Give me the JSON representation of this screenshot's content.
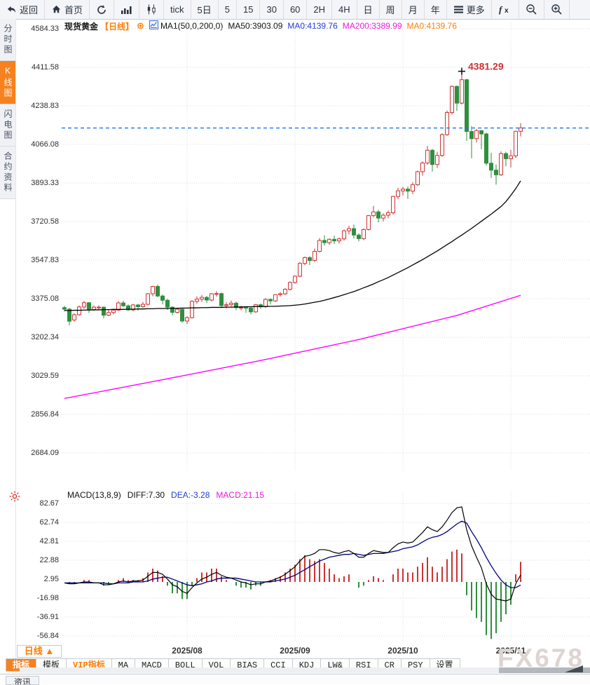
{
  "toolbar": {
    "items": [
      {
        "name": "back-button",
        "icon": "back",
        "label": "返回"
      },
      {
        "name": "home-button",
        "icon": "home",
        "label": "首页"
      },
      {
        "name": "refresh-button",
        "icon": "refresh",
        "label": ""
      },
      {
        "name": "line-chart-button",
        "icon": "barchart",
        "label": ""
      },
      {
        "name": "candle-chart-button",
        "icon": "candle",
        "label": ""
      },
      {
        "name": "interval-tick",
        "icon": "",
        "label": "tick"
      },
      {
        "name": "interval-5day",
        "icon": "",
        "label": "5日"
      },
      {
        "name": "interval-5min",
        "icon": "",
        "label": "5"
      },
      {
        "name": "interval-15min",
        "icon": "",
        "label": "15"
      },
      {
        "name": "interval-30min",
        "icon": "",
        "label": "30"
      },
      {
        "name": "interval-60min",
        "icon": "",
        "label": "60"
      },
      {
        "name": "interval-2h",
        "icon": "",
        "label": "2H"
      },
      {
        "name": "interval-4h",
        "icon": "",
        "label": "4H"
      },
      {
        "name": "interval-day",
        "icon": "",
        "label": "日"
      },
      {
        "name": "interval-week",
        "icon": "",
        "label": "周"
      },
      {
        "name": "interval-month",
        "icon": "",
        "label": "月"
      },
      {
        "name": "interval-year",
        "icon": "",
        "label": "年"
      },
      {
        "name": "more-button",
        "icon": "menu",
        "label": "更多"
      },
      {
        "name": "formula-button",
        "icon": "fx",
        "label": ""
      },
      {
        "name": "zoom-out-button",
        "icon": "zoomout",
        "label": ""
      },
      {
        "name": "zoom-in-button",
        "icon": "zoomin",
        "label": ""
      }
    ]
  },
  "sidebar": {
    "items": [
      {
        "name": "sidebar-item-time-chart",
        "label": "分时图",
        "active": false
      },
      {
        "name": "sidebar-item-kline-chart",
        "label": "K线图",
        "active": true
      },
      {
        "name": "sidebar-item-flash-chart",
        "label": "闪电图",
        "active": false
      },
      {
        "name": "sidebar-item-contract-info",
        "label": "合约资料",
        "active": false
      }
    ]
  },
  "chart_header": {
    "symbol": "现货黄金",
    "period_tag": "【日线】",
    "plus_glyph": "⊕",
    "ma_param": "MA1(50,0,200,0)",
    "ma50_text": "MA50:3903.09",
    "ma0_blue_text": "MA0:4139.76",
    "ma200_text": "MA200:3389.99",
    "ma0_orange_text": "MA0:4139.76"
  },
  "macd_header": {
    "param": "MACD(13,8,9)",
    "diff_text": "DIFF:7.30",
    "dea_text": "DEA:-3.28",
    "macd_text": "MACD:21.15"
  },
  "bottom": {
    "period_selector": "日线 ▲",
    "tabs": [
      {
        "name": "tab-indicator",
        "label": "指标",
        "style": "active"
      },
      {
        "name": "tab-template",
        "label": "模板",
        "style": ""
      },
      {
        "name": "tab-vip-indicator",
        "label": "VIP指标",
        "style": "vip"
      },
      {
        "name": "tab-ma",
        "label": "MA",
        "style": ""
      },
      {
        "name": "tab-macd",
        "label": "MACD",
        "style": ""
      },
      {
        "name": "tab-boll",
        "label": "BOLL",
        "style": ""
      },
      {
        "name": "tab-vol",
        "label": "VOL",
        "style": ""
      },
      {
        "name": "tab-bias",
        "label": "BIAS",
        "style": ""
      },
      {
        "name": "tab-cci",
        "label": "CCI",
        "style": ""
      },
      {
        "name": "tab-kdj",
        "label": "KDJ",
        "style": ""
      },
      {
        "name": "tab-lw",
        "label": "LW&",
        "style": ""
      },
      {
        "name": "tab-rsi",
        "label": "RSI",
        "style": ""
      },
      {
        "name": "tab-cr",
        "label": "CR",
        "style": ""
      },
      {
        "name": "tab-psy",
        "label": "PSY",
        "style": ""
      },
      {
        "name": "tab-settings",
        "label": "设置",
        "style": ""
      }
    ],
    "corner_tab": "资讯"
  },
  "watermark": "FX678",
  "colors": {
    "up": "#cc3333",
    "down": "#2f8f3f",
    "ma50": "#000000",
    "ma200": "#ff00ff",
    "diff": "#000000",
    "dea": "#000080",
    "dashed_price_line": "#1678e8",
    "accent_orange": "#f5821f",
    "annotation_red": "#d03030",
    "grid": "#dcdcdc"
  },
  "chart_data": [
    {
      "type": "candlestick",
      "title": "现货黄金 日线 (spot gold daily)",
      "y_ticks": [
        4584.33,
        4411.58,
        4238.83,
        4066.08,
        3893.33,
        3720.58,
        3547.83,
        3375.08,
        3202.34,
        3029.59,
        2856.84,
        2684.09
      ],
      "x_labels": [
        {
          "label": "2025/08",
          "i": 25
        },
        {
          "label": "2025/09",
          "i": 47
        },
        {
          "label": "2025/10",
          "i": 69
        },
        {
          "label": "2025/11",
          "i": 91
        }
      ],
      "current_price_line": 4139.76,
      "peak_annotation": {
        "i": 81,
        "price": 4381.29,
        "label": "4381.29"
      },
      "ma50_current": 3903.09,
      "ma200_current": 3389.99,
      "candles": [
        [
          3335,
          3343,
          3318,
          3328
        ],
        [
          3328,
          3334,
          3255,
          3274
        ],
        [
          3280,
          3310,
          3272,
          3303
        ],
        [
          3303,
          3345,
          3298,
          3338
        ],
        [
          3338,
          3365,
          3330,
          3357
        ],
        [
          3357,
          3360,
          3311,
          3326
        ],
        [
          3326,
          3344,
          3320,
          3337
        ],
        [
          3337,
          3345,
          3325,
          3337
        ],
        [
          3337,
          3340,
          3287,
          3301
        ],
        [
          3301,
          3325,
          3296,
          3313
        ],
        [
          3313,
          3330,
          3305,
          3324
        ],
        [
          3324,
          3364,
          3320,
          3356
        ],
        [
          3356,
          3366,
          3338,
          3343
        ],
        [
          3343,
          3349,
          3320,
          3325
        ],
        [
          3325,
          3352,
          3319,
          3347
        ],
        [
          3347,
          3352,
          3321,
          3339
        ],
        [
          3339,
          3360,
          3334,
          3350
        ],
        [
          3350,
          3401,
          3345,
          3397
        ],
        [
          3397,
          3433,
          3386,
          3430
        ],
        [
          3430,
          3438,
          3381,
          3387
        ],
        [
          3387,
          3394,
          3350,
          3368
        ],
        [
          3368,
          3374,
          3325,
          3337
        ],
        [
          3337,
          3341,
          3301,
          3314
        ],
        [
          3314,
          3335,
          3308,
          3328
        ],
        [
          3328,
          3330,
          3268,
          3275
        ],
        [
          3275,
          3296,
          3262,
          3290
        ],
        [
          3290,
          3369,
          3286,
          3363
        ],
        [
          3363,
          3385,
          3352,
          3373
        ],
        [
          3373,
          3392,
          3360,
          3381
        ],
        [
          3381,
          3387,
          3355,
          3369
        ],
        [
          3369,
          3400,
          3362,
          3397
        ],
        [
          3397,
          3409,
          3384,
          3398
        ],
        [
          3398,
          3402,
          3335,
          3344
        ],
        [
          3344,
          3360,
          3331,
          3348
        ],
        [
          3348,
          3367,
          3340,
          3355
        ],
        [
          3355,
          3362,
          3324,
          3335
        ],
        [
          3335,
          3344,
          3323,
          3336
        ],
        [
          3336,
          3340,
          3312,
          3333
        ],
        [
          3333,
          3338,
          3305,
          3316
        ],
        [
          3316,
          3352,
          3312,
          3348
        ],
        [
          3348,
          3353,
          3330,
          3339
        ],
        [
          3339,
          3378,
          3334,
          3372
        ],
        [
          3372,
          3376,
          3350,
          3365
        ],
        [
          3365,
          3396,
          3360,
          3393
        ],
        [
          3393,
          3405,
          3384,
          3397
        ],
        [
          3397,
          3423,
          3391,
          3417
        ],
        [
          3417,
          3452,
          3412,
          3448
        ],
        [
          3448,
          3480,
          3442,
          3476
        ],
        [
          3476,
          3540,
          3470,
          3533
        ],
        [
          3533,
          3564,
          3525,
          3559
        ],
        [
          3559,
          3566,
          3526,
          3546
        ],
        [
          3546,
          3600,
          3540,
          3587
        ],
        [
          3587,
          3646,
          3582,
          3636
        ],
        [
          3636,
          3659,
          3613,
          3626
        ],
        [
          3626,
          3646,
          3617,
          3641
        ],
        [
          3641,
          3657,
          3620,
          3634
        ],
        [
          3634,
          3649,
          3622,
          3643
        ],
        [
          3643,
          3685,
          3635,
          3679
        ],
        [
          3679,
          3702,
          3663,
          3689
        ],
        [
          3689,
          3707,
          3645,
          3660
        ],
        [
          3660,
          3668,
          3632,
          3644
        ],
        [
          3644,
          3690,
          3637,
          3685
        ],
        [
          3685,
          3750,
          3680,
          3747
        ],
        [
          3747,
          3791,
          3740,
          3764
        ],
        [
          3764,
          3773,
          3717,
          3736
        ],
        [
          3736,
          3757,
          3721,
          3749
        ],
        [
          3749,
          3770,
          3735,
          3760
        ],
        [
          3760,
          3836,
          3752,
          3833
        ],
        [
          3833,
          3872,
          3820,
          3858
        ],
        [
          3858,
          3876,
          3838,
          3866
        ],
        [
          3866,
          3878,
          3822,
          3857
        ],
        [
          3857,
          3897,
          3843,
          3886
        ],
        [
          3886,
          3949,
          3880,
          3944
        ],
        [
          3944,
          3990,
          3926,
          3983
        ],
        [
          3983,
          4059,
          3975,
          4040
        ],
        [
          4040,
          4046,
          3945,
          3976
        ],
        [
          3976,
          4033,
          3960,
          4017
        ],
        [
          4017,
          4116,
          4010,
          4110
        ],
        [
          4110,
          4218,
          4104,
          4209
        ],
        [
          4209,
          4331,
          4200,
          4326
        ],
        [
          4326,
          4330,
          4216,
          4251
        ],
        [
          4251,
          4381.29,
          4245,
          4356
        ],
        [
          4356,
          4360,
          4082,
          4124
        ],
        [
          4124,
          4148,
          4004,
          4092
        ],
        [
          4092,
          4136,
          4075,
          4128
        ],
        [
          4128,
          4130,
          4044,
          4113
        ],
        [
          4113,
          4119,
          3972,
          3982
        ],
        [
          3982,
          4029,
          3916,
          3951
        ],
        [
          3951,
          3976,
          3886,
          3930
        ],
        [
          3930,
          4035,
          3925,
          4025
        ],
        [
          4025,
          4033,
          3968,
          4002
        ],
        [
          4002,
          4042,
          3963,
          4015
        ],
        [
          4015,
          4128,
          4005,
          4125
        ],
        [
          4125,
          4161,
          4102,
          4140
        ]
      ],
      "ma50": [
        3322,
        3322,
        3323,
        3323,
        3324,
        3324,
        3325,
        3325,
        3326,
        3326,
        3327,
        3327,
        3327,
        3328,
        3328,
        3329,
        3329,
        3330,
        3330,
        3331,
        3331,
        3331,
        3332,
        3332,
        3333,
        3333,
        3334,
        3334,
        3335,
        3335,
        3336,
        3336,
        3336,
        3337,
        3337,
        3338,
        3338,
        3339,
        3339,
        3340,
        3340,
        3340,
        3341,
        3341,
        3342,
        3343,
        3344,
        3346,
        3348,
        3351,
        3355,
        3359,
        3363,
        3368,
        3374,
        3380,
        3386,
        3393,
        3400,
        3407,
        3415,
        3424,
        3432,
        3441,
        3451,
        3460,
        3470,
        3481,
        3492,
        3503,
        3514,
        3526,
        3538,
        3550,
        3563,
        3576,
        3589,
        3603,
        3617,
        3631,
        3646,
        3660,
        3675,
        3690,
        3706,
        3722,
        3738,
        3754,
        3771,
        3788,
        3810,
        3838,
        3868,
        3903
      ],
      "ma200_points": [
        [
          0,
          2928
        ],
        [
          20,
          3012
        ],
        [
          40,
          3098
        ],
        [
          60,
          3192
        ],
        [
          80,
          3300
        ],
        [
          93,
          3390
        ]
      ]
    },
    {
      "type": "macd-histogram",
      "title": "MACD(13,8,9)",
      "y_ticks": [
        82.67,
        62.74,
        42.81,
        22.88,
        2.95,
        -16.98,
        -36.91,
        -56.84
      ],
      "diff": [
        -1,
        -2,
        -2,
        -1,
        0,
        0,
        -1,
        -1,
        -3,
        -3,
        -2,
        0,
        1,
        0,
        1,
        1,
        2,
        6,
        10,
        10,
        8,
        3,
        -3,
        -5,
        -10,
        -12,
        -6,
        -1,
        3,
        5,
        8,
        10,
        7,
        5,
        4,
        2,
        0,
        -1,
        -3,
        -2,
        -2,
        0,
        1,
        3,
        5,
        8,
        12,
        16,
        22,
        27,
        28,
        30,
        34,
        34,
        33,
        31,
        30,
        32,
        33,
        30,
        26,
        26,
        30,
        33,
        32,
        31,
        31,
        36,
        40,
        42,
        41,
        42,
        47,
        52,
        58,
        55,
        53,
        58,
        65,
        73,
        78,
        79,
        55,
        38,
        26,
        15,
        -2,
        -13,
        -18,
        -19,
        -20,
        -18,
        -2,
        7.3
      ],
      "dea": [
        -1,
        -1,
        -1,
        -1,
        -1,
        -1,
        -1,
        -1,
        -1,
        -2,
        -2,
        -1,
        -1,
        -1,
        0,
        0,
        0,
        1,
        3,
        4,
        5,
        5,
        3,
        1,
        -1,
        -3,
        -4,
        -3,
        -2,
        0,
        1,
        3,
        4,
        4,
        4,
        4,
        3,
        2,
        1,
        0,
        0,
        0,
        0,
        1,
        2,
        3,
        5,
        7,
        10,
        13,
        16,
        19,
        22,
        24,
        26,
        27,
        28,
        29,
        29,
        30,
        29,
        28,
        29,
        30,
        30,
        30,
        31,
        32,
        33,
        35,
        36,
        37,
        39,
        42,
        45,
        47,
        48,
        50,
        53,
        57,
        61,
        64,
        62,
        53,
        45,
        36,
        26,
        17,
        9,
        2,
        -3,
        -6,
        -6,
        -3.28
      ],
      "hist_formula": "2*(DIFF-DEA)"
    }
  ]
}
